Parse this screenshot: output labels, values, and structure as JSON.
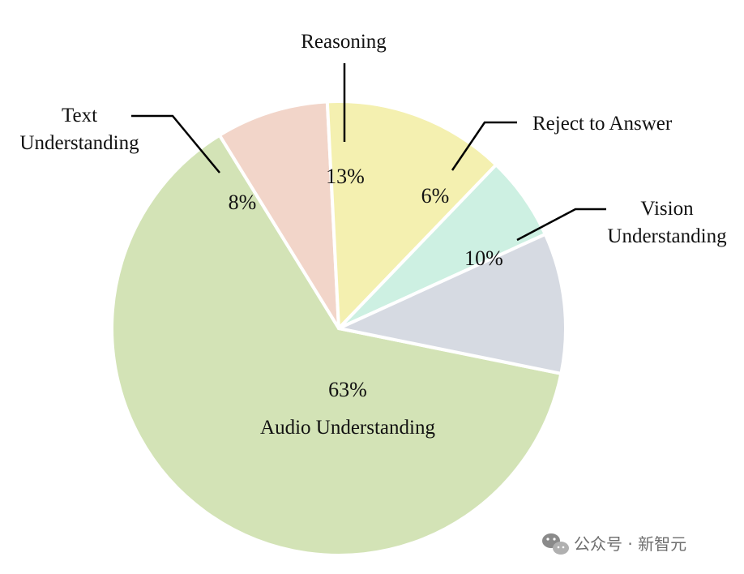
{
  "chart_data": {
    "type": "pie",
    "slices": [
      {
        "label": "Audio Understanding",
        "value": 63,
        "value_label": "63%",
        "color": "#d3e3b6"
      },
      {
        "label": "Text Understanding",
        "value": 8,
        "value_label": "8%",
        "color": "#f2d5c9"
      },
      {
        "label": "Reasoning",
        "value": 13,
        "value_label": "13%",
        "color": "#f4f0b0"
      },
      {
        "label": "Reject to Answer",
        "value": 6,
        "value_label": "6%",
        "color": "#cdf0e2"
      },
      {
        "label": "Vision Understanding",
        "value": 10,
        "value_label": "10%",
        "color": "#d6dae2"
      }
    ]
  },
  "labels": {
    "text_line1": "Text",
    "text_line2": "Understanding",
    "reasoning": "Reasoning",
    "reject": "Reject to Answer",
    "vision_line1": "Vision",
    "vision_line2": "Understanding",
    "audio": "Audio Understanding"
  },
  "watermark": {
    "text": "公众号 · 新智元",
    "icon": "wechat-icon"
  }
}
